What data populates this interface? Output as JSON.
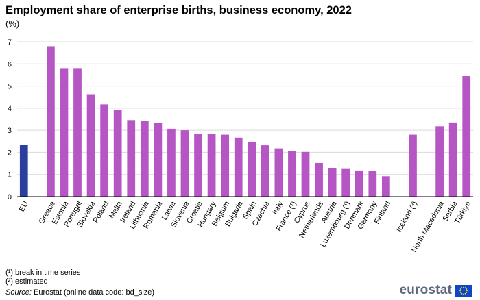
{
  "title": "Employment share of enterprise births, business economy, 2022",
  "unit": "(%)",
  "notes": [
    "(¹) break in time series",
    "(²) estimated"
  ],
  "source": {
    "label": "Source:",
    "text": "Eurostat (online data code: bd_size)"
  },
  "logo": {
    "text": "eurostat"
  },
  "colors": {
    "eu": "#2b3f9e",
    "country": "#b556c4",
    "grid": "#d9d9d9",
    "axis": "#000000",
    "flag": "#0e47cb",
    "stars": "#ffde00"
  },
  "chart_data": {
    "type": "bar",
    "ylim": [
      0,
      7
    ],
    "yticks": [
      0,
      1,
      2,
      3,
      4,
      5,
      6,
      7
    ],
    "grid": true,
    "categories": [
      "EU",
      "",
      "Greece",
      "Estonia",
      "Portugal",
      "Slovakia",
      "Poland",
      "Malta",
      "Ireland",
      "Lithuania",
      "Romania",
      "Latvia",
      "Slovenia",
      "Croatia",
      "Hungary",
      "Belgium",
      "Bulgaria",
      "Spain",
      "Czechia",
      "Italy",
      "France (¹)",
      "Cyprus",
      "Netherlands",
      "Austria",
      "Luxembourg (¹)",
      "Denmark",
      "Germany",
      "Finland",
      "",
      "Iceland (²)",
      "",
      "North Macedonia",
      "Serbia",
      "Türkiye"
    ],
    "values": [
      2.33,
      null,
      6.8,
      5.78,
      5.78,
      4.63,
      4.17,
      3.93,
      3.46,
      3.43,
      3.32,
      3.07,
      3.0,
      2.83,
      2.83,
      2.8,
      2.67,
      2.48,
      2.32,
      2.18,
      2.05,
      2.02,
      1.52,
      1.3,
      1.25,
      1.18,
      1.15,
      0.92,
      null,
      2.8,
      null,
      3.18,
      3.35,
      5.45
    ],
    "highlight": [
      "EU"
    ]
  }
}
